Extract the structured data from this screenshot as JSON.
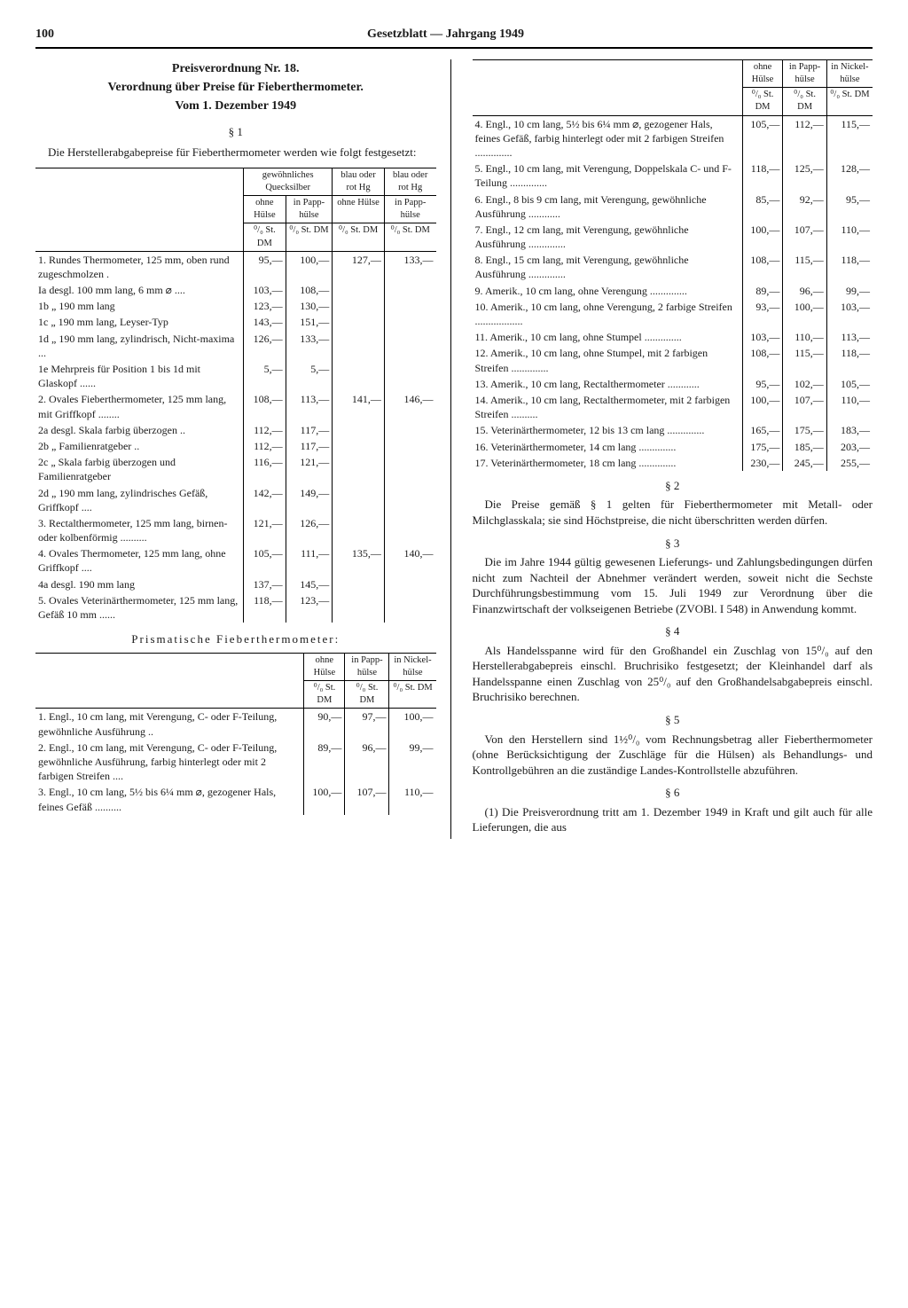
{
  "page_number": "100",
  "running_head": "Gesetzblatt — Jahrgang 1949",
  "title_block": {
    "l1": "Preisverordnung Nr. 18.",
    "l2": "Verordnung über Preise für Fieberthermometer.",
    "l3": "Vom 1. Dezember 1949"
  },
  "s1_label": "§ 1",
  "s1_intro": "Die Herstellerabgabepreise für Fieberthermometer werden wie folgt festgesetzt:",
  "table1": {
    "head_group1": "gewöhnliches Quecksilber",
    "head_group2a": "blau oder rot Hg",
    "head_group2b": "blau oder rot Hg",
    "col_a": "ohne Hülse",
    "col_b": "in Papp-hülse",
    "unit": "⁰/₀ St. DM",
    "rows": [
      {
        "d": "1. Rundes Thermometer, 125 mm, oben rund zugeschmolzen .",
        "a": "95,—",
        "b": "100,—",
        "c": "127,—",
        "e": "133,—"
      },
      {
        "d": "Ia desgl. 100 mm lang, 6 mm ⌀ ....",
        "a": "103,—",
        "b": "108,—",
        "c": "",
        "e": ""
      },
      {
        "d": "1b   „   190 mm lang",
        "a": "123,—",
        "b": "130,—",
        "c": "",
        "e": ""
      },
      {
        "d": "1c   „   190 mm lang, Leyser-Typ",
        "a": "143,—",
        "b": "151,—",
        "c": "",
        "e": ""
      },
      {
        "d": "1d   „   190 mm lang, zylindrisch, Nicht-maxima ...",
        "a": "126,—",
        "b": "133,—",
        "c": "",
        "e": ""
      },
      {
        "d": "1e Mehrpreis für Position 1 bis 1d mit Glaskopf ......",
        "a": "5,—",
        "b": "5,—",
        "c": "",
        "e": ""
      },
      {
        "d": "2. Ovales Fieberthermometer, 125 mm lang, mit Griffkopf ........",
        "a": "108,—",
        "b": "113,—",
        "c": "141,—",
        "e": "146,—"
      },
      {
        "d": "2a desgl. Skala farbig überzogen ..",
        "a": "112,—",
        "b": "117,—",
        "c": "",
        "e": ""
      },
      {
        "d": "2b   „   Familienratgeber ..",
        "a": "112,—",
        "b": "117,—",
        "c": "",
        "e": ""
      },
      {
        "d": "2c   „   Skala farbig überzogen und Familienratgeber",
        "a": "116,—",
        "b": "121,—",
        "c": "",
        "e": ""
      },
      {
        "d": "2d   „   190 mm lang, zylindrisches Gefäß, Griffkopf ....",
        "a": "142,—",
        "b": "149,—",
        "c": "",
        "e": ""
      },
      {
        "d": "3. Rectalthermometer, 125 mm lang, birnen- oder kolbenförmig ..........",
        "a": "121,—",
        "b": "126,—",
        "c": "",
        "e": ""
      },
      {
        "d": "4. Ovales Thermometer, 125 mm lang, ohne Griffkopf ....",
        "a": "105,—",
        "b": "111,—",
        "c": "135,—",
        "e": "140,—"
      },
      {
        "d": "4a desgl. 190 mm lang",
        "a": "137,—",
        "b": "145,—",
        "c": "",
        "e": ""
      },
      {
        "d": "5. Ovales Veterinärthermometer, 125 mm lang, Gefäß 10 mm ......",
        "a": "118,—",
        "b": "123,—",
        "c": "",
        "e": ""
      }
    ]
  },
  "subhead_prism": "Prismatische Fieberthermometer:",
  "table2": {
    "col_a": "ohne Hülse",
    "col_b": "in Papp-hülse",
    "col_c": "in Nickel-hülse",
    "unit": "⁰/₀ St. DM",
    "rows": [
      {
        "d": "1. Engl., 10 cm lang, mit Verengung, C- oder F-Teilung, gewöhnliche Ausführung ..",
        "a": "90,—",
        "b": "97,—",
        "c": "100,—"
      },
      {
        "d": "2. Engl., 10 cm lang, mit Verengung, C- oder F-Teilung, gewöhnliche Ausführung, farbig hinterlegt oder mit 2 farbigen Streifen ....",
        "a": "89,—",
        "b": "96,—",
        "c": "99,—"
      },
      {
        "d": "3. Engl., 10 cm lang, 5½ bis 6¼ mm ⌀, gezogener Hals, feines Gefäß ..........",
        "a": "100,—",
        "b": "107,—",
        "c": "110,—"
      }
    ]
  },
  "table3": {
    "col_a": "ohne Hülse",
    "col_b": "in Papp-hülse",
    "col_c": "in Nickel-hülse",
    "unit": "⁰/₀ St. DM",
    "rows": [
      {
        "d": "4. Engl., 10 cm lang, 5½ bis 6¼ mm ⌀, gezogener Hals, feines Gefäß, farbig hinterlegt oder mit 2 farbigen Streifen ..............",
        "a": "105,—",
        "b": "112,—",
        "c": "115,—"
      },
      {
        "d": "5. Engl., 10 cm lang, mit Verengung, Doppelskala C- und F-Teilung ..............",
        "a": "118,—",
        "b": "125,—",
        "c": "128,—"
      },
      {
        "d": "6. Engl., 8 bis 9 cm lang, mit Verengung, gewöhnliche Ausführung ............",
        "a": "85,—",
        "b": "92,—",
        "c": "95,—"
      },
      {
        "d": "7. Engl., 12 cm lang, mit Verengung, gewöhnliche Ausführung ..............",
        "a": "100,—",
        "b": "107,—",
        "c": "110,—"
      },
      {
        "d": "8. Engl., 15 cm lang, mit Verengung, gewöhnliche Ausführung ..............",
        "a": "108,—",
        "b": "115,—",
        "c": "118,—"
      },
      {
        "d": "9. Amerik., 10 cm lang, ohne Verengung ..............",
        "a": "89,—",
        "b": "96,—",
        "c": "99,—"
      },
      {
        "d": "10. Amerik., 10 cm lang, ohne Verengung, 2 farbige Streifen ..................",
        "a": "93,—",
        "b": "100,—",
        "c": "103,—"
      },
      {
        "d": "11. Amerik., 10 cm lang, ohne Stumpel ..............",
        "a": "103,—",
        "b": "110,—",
        "c": "113,—"
      },
      {
        "d": "12. Amerik., 10 cm lang, ohne Stumpel, mit 2 farbigen Streifen ..............",
        "a": "108,—",
        "b": "115,—",
        "c": "118,—"
      },
      {
        "d": "13. Amerik., 10 cm lang, Rectalthermometer ............",
        "a": "95,—",
        "b": "102,—",
        "c": "105,—"
      },
      {
        "d": "14. Amerik., 10 cm lang, Rectalthermometer, mit 2 farbigen Streifen ..........",
        "a": "100,—",
        "b": "107,—",
        "c": "110,—"
      },
      {
        "d": "15. Veterinärthermometer, 12 bis 13 cm lang ..............",
        "a": "165,—",
        "b": "175,—",
        "c": "183,—"
      },
      {
        "d": "16. Veterinärthermometer, 14 cm lang ..............",
        "a": "175,—",
        "b": "185,—",
        "c": "203,—"
      },
      {
        "d": "17. Veterinärthermometer, 18 cm lang ..............",
        "a": "230,—",
        "b": "245,—",
        "c": "255,—"
      }
    ]
  },
  "s2_label": "§ 2",
  "s2_text": "Die Preise gemäß § 1 gelten für Fieberthermometer mit Metall- oder Milchglasskala; sie sind Höchstpreise, die nicht überschritten werden dürfen.",
  "s3_label": "§ 3",
  "s3_text": "Die im Jahre 1944 gültig gewesenen Lieferungs- und Zahlungsbedingungen dürfen nicht zum Nachteil der Abnehmer verändert werden, soweit nicht die Sechste Durchführungsbestimmung vom 15. Juli 1949 zur Verordnung über die Finanzwirtschaft der volkseigenen Betriebe (ZVOBl. I 548) in Anwendung kommt.",
  "s4_label": "§ 4",
  "s4_text": "Als Handelsspanne wird für den Großhandel ein Zuschlag von 15⁰/₀ auf den Herstellerabgabepreis einschl. Bruchrisiko festgesetzt; der Kleinhandel darf als Handelsspanne einen Zuschlag von 25⁰/₀ auf den Großhandelsabgabepreis einschl. Bruchrisiko berechnen.",
  "s5_label": "§ 5",
  "s5_text": "Von den Herstellern sind 1½⁰/₀ vom Rechnungsbetrag aller Fieberthermometer (ohne Berücksichtigung der Zuschläge für die Hülsen) als Behandlungs- und Kontrollgebühren an die zuständige Landes-Kontrollstelle abzuführen.",
  "s6_label": "§ 6",
  "s6_text": "(1) Die Preisverordnung tritt am 1. Dezember 1949 in Kraft und gilt auch für alle Lieferungen, die aus"
}
